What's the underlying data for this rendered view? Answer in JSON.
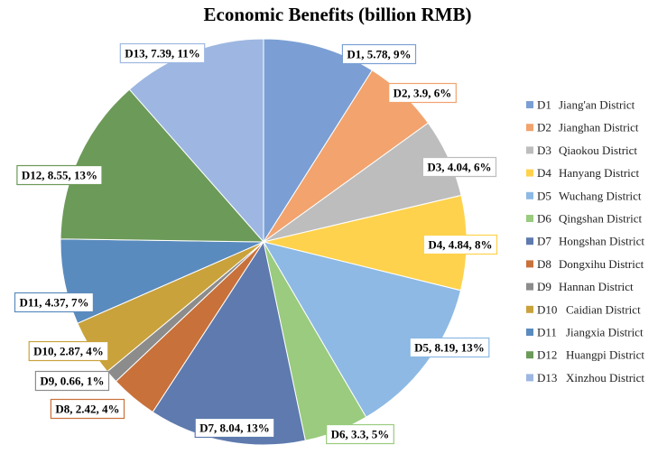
{
  "chart_data": {
    "type": "pie",
    "title": "Economic Benefits (billion RMB)",
    "legend_position": "right",
    "slices": [
      {
        "code": "D1",
        "name": "Jiang'an District",
        "value": 5.78,
        "percent": "9%",
        "color": "#7B9FD4"
      },
      {
        "code": "D2",
        "name": "Jianghan District",
        "value": 3.9,
        "percent": "6%",
        "color": "#F2A36E"
      },
      {
        "code": "D3",
        "name": "Qiaokou District",
        "value": 4.04,
        "percent": "6%",
        "color": "#BDBDBD"
      },
      {
        "code": "D4",
        "name": "Hanyang District",
        "value": 4.84,
        "percent": "8%",
        "color": "#FFD24D"
      },
      {
        "code": "D5",
        "name": "Wuchang District",
        "value": 8.19,
        "percent": "13%",
        "color": "#8DB9E4"
      },
      {
        "code": "D6",
        "name": "Qingshan District",
        "value": 3.3,
        "percent": "5%",
        "color": "#9ACB7E"
      },
      {
        "code": "D7",
        "name": "Hongshan District",
        "value": 8.04,
        "percent": "13%",
        "color": "#5E7AAE"
      },
      {
        "code": "D8",
        "name": "Dongxihu District",
        "value": 2.42,
        "percent": "4%",
        "color": "#C8713B"
      },
      {
        "code": "D9",
        "name": "Hannan District",
        "value": 0.66,
        "percent": "1%",
        "color": "#8C8C8C"
      },
      {
        "code": "D10",
        "name": "Caidian District",
        "value": 2.87,
        "percent": "4%",
        "color": "#C9A23C"
      },
      {
        "code": "D11",
        "name": "Jiangxia District",
        "value": 4.37,
        "percent": "7%",
        "color": "#5A8BBE"
      },
      {
        "code": "D12",
        "name": "Huangpi District",
        "value": 8.55,
        "percent": "13%",
        "color": "#6C9A58"
      },
      {
        "code": "D13",
        "name": "Xinzhou District",
        "value": 7.39,
        "percent": "11%",
        "color": "#9DB7E2"
      }
    ]
  }
}
